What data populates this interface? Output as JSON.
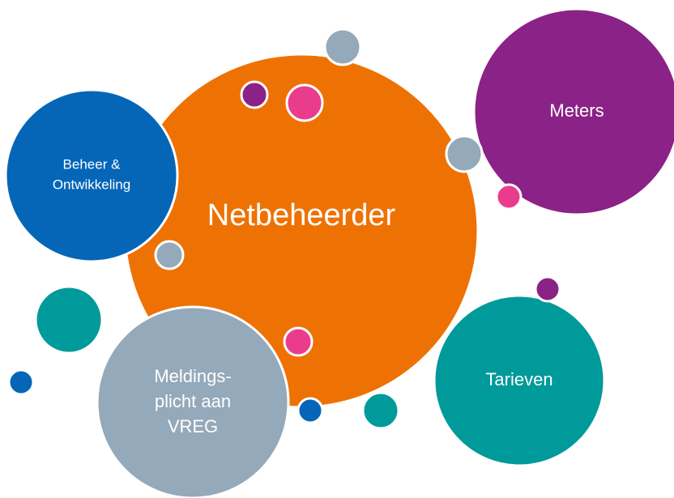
{
  "nodes": [
    {
      "label": [
        "Netbeheerder"
      ]
    },
    {
      "label": [
        "Beheer &",
        "Ontwikkeling"
      ]
    },
    {
      "label": [
        "Meters"
      ]
    },
    {
      "label": [
        "Tarieven"
      ]
    },
    {
      "label": [
        "Meldings-",
        "plicht aan",
        "VREG"
      ]
    }
  ]
}
